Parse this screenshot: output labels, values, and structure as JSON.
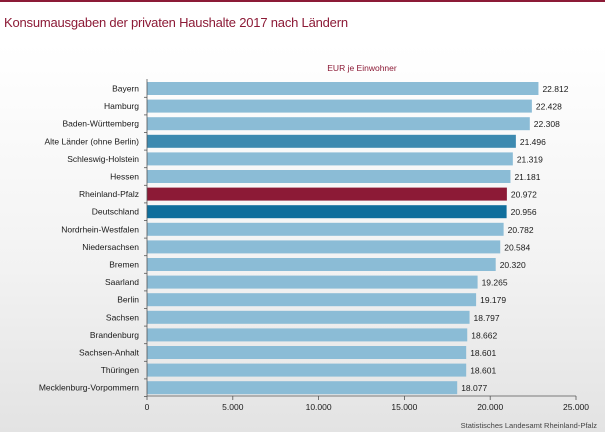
{
  "page": {
    "title": "Konsumausgaben der privaten Haushalte 2017 nach Ländern",
    "source": "Statistisches Landesamt Rheinland-Pfalz"
  },
  "colors": {
    "brand": "#8c1a36",
    "bar_default": "#8bbcd6",
    "bar_alte_laender": "#3d8ab0",
    "bar_rheinland_pfalz": "#8c1a36",
    "bar_deutschland": "#0f6e9c"
  },
  "chart_data": {
    "type": "bar",
    "orientation": "horizontal",
    "title": "EUR je Einwohner",
    "categories": [
      "Bayern",
      "Hamburg",
      "Baden-Württemberg",
      "Alte Länder (ohne Berlin)",
      "Schleswig-Holstein",
      "Hessen",
      "Rheinland-Pfalz",
      "Deutschland",
      "Nordrhein-Westfalen",
      "Niedersachsen",
      "Bremen",
      "Saarland",
      "Berlin",
      "Sachsen",
      "Brandenburg",
      "Sachsen-Anhalt",
      "Thüringen",
      "Mecklenburg-Vorpommern"
    ],
    "values": [
      22812,
      22428,
      22308,
      21496,
      21319,
      21181,
      20972,
      20956,
      20782,
      20584,
      20320,
      19265,
      19179,
      18797,
      18662,
      18601,
      18601,
      18077
    ],
    "value_labels": [
      "22.812",
      "22.428",
      "22.308",
      "21.496",
      "21.319",
      "21.181",
      "20.972",
      "20.956",
      "20.782",
      "20.584",
      "20.320",
      "19.265",
      "19.179",
      "18.797",
      "18.662",
      "18.601",
      "18.601",
      "18.077"
    ],
    "xlim": [
      0,
      25000
    ],
    "xticks": [
      0,
      5000,
      10000,
      15000,
      20000,
      25000
    ],
    "xtick_labels": [
      "0",
      "5.000",
      "10.000",
      "15.000",
      "20.000",
      "25.000"
    ],
    "highlight": {
      "Alte Länder (ohne Berlin)": "bar_alte_laender",
      "Rheinland-Pfalz": "bar_rheinland_pfalz",
      "Deutschland": "bar_deutschland"
    },
    "grid": false
  }
}
